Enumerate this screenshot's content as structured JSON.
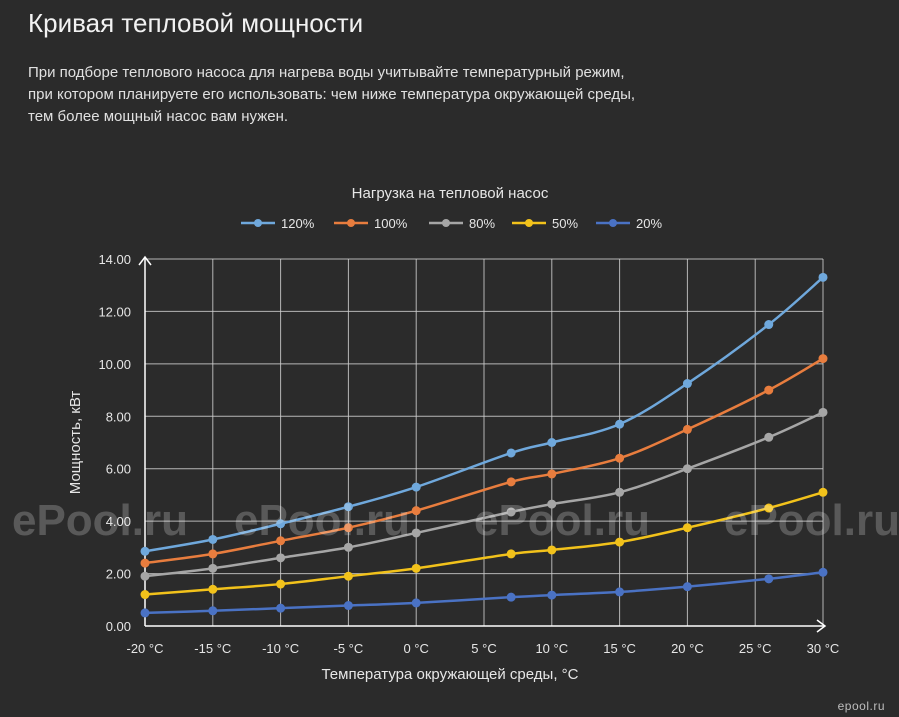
{
  "page": {
    "title": "Кривая тепловой мощности",
    "intro": [
      "При подборе теплового насоса для нагрева воды учитывайте температурный режим,",
      "при котором планируете его использовать: чем ниже температура окружающей среды,",
      "тем более мощный насос вам нужен."
    ],
    "watermark": "ePool.ru",
    "site_mark": "epool.ru"
  },
  "colors": {
    "background": "#2b2b2b",
    "grid": "#cfcfcf",
    "text": "#e6e6e6"
  },
  "chart_data": {
    "type": "line",
    "title": "Нагрузка на тепловой насос",
    "xlabel": "Температура окружающей среды, °С",
    "ylabel": "Мощность, кВт",
    "xlim": [
      -20,
      30
    ],
    "ylim": [
      0,
      14
    ],
    "xticks": [
      -20,
      -15,
      -10,
      -5,
      0,
      5,
      10,
      15,
      20,
      25,
      30
    ],
    "xtick_labels": [
      "-20 °C",
      "-15 °C",
      "-10 °C",
      "-5 °C",
      "0 °C",
      "5 °C",
      "10 °C",
      "15 °C",
      "20 °C",
      "25 °C",
      "30 °C"
    ],
    "yticks": [
      0,
      2,
      4,
      6,
      8,
      10,
      12,
      14
    ],
    "ytick_labels": [
      "0.00",
      "2.00",
      "4.00",
      "6.00",
      "8.00",
      "10.00",
      "12.00",
      "14.00"
    ],
    "grid": true,
    "legend_position": "top",
    "x": [
      -20,
      -15,
      -10,
      -5,
      0,
      7,
      10,
      15,
      20,
      26,
      30
    ],
    "series": [
      {
        "name": "120%",
        "color": "#6fa8dc",
        "values": [
          2.85,
          3.3,
          3.9,
          4.55,
          5.3,
          6.6,
          7.0,
          7.7,
          9.25,
          11.5,
          13.3
        ]
      },
      {
        "name": "100%",
        "color": "#e87d3e",
        "values": [
          2.4,
          2.75,
          3.25,
          3.75,
          4.4,
          5.5,
          5.8,
          6.4,
          7.5,
          9.0,
          10.2
        ]
      },
      {
        "name": "80%",
        "color": "#a6a6a6",
        "values": [
          1.9,
          2.2,
          2.6,
          3.0,
          3.55,
          4.35,
          4.65,
          5.1,
          6.0,
          7.2,
          8.15
        ]
      },
      {
        "name": "50%",
        "color": "#f2c21b",
        "values": [
          1.2,
          1.4,
          1.6,
          1.9,
          2.2,
          2.75,
          2.9,
          3.2,
          3.75,
          4.5,
          5.1
        ]
      },
      {
        "name": "20%",
        "color": "#4a72c4",
        "values": [
          0.5,
          0.58,
          0.68,
          0.78,
          0.88,
          1.1,
          1.18,
          1.3,
          1.5,
          1.8,
          2.05
        ]
      }
    ]
  }
}
